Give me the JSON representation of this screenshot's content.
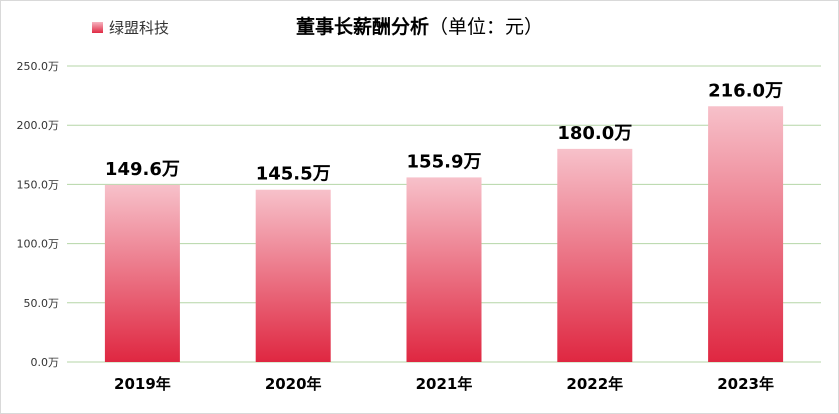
{
  "chart_data": {
    "type": "bar",
    "title": "董事长薪酬分析",
    "title_unit": "（单位：元）",
    "categories": [
      "2019年",
      "2020年",
      "2021年",
      "2022年",
      "2023年"
    ],
    "series": [
      {
        "name": "绿盟科技",
        "values": [
          149.6,
          145.5,
          155.9,
          180.0,
          216.0
        ],
        "data_labels": [
          "149.6万",
          "145.5万",
          "155.9万",
          "180.0万",
          "216.0万"
        ]
      }
    ],
    "y_ticks": [
      0,
      50,
      100,
      150,
      200,
      250
    ],
    "y_tick_labels": [
      "0.0万",
      "50.0万",
      "100.0万",
      "150.0万",
      "200.0万",
      "250.0万"
    ],
    "ylim": [
      0,
      250
    ],
    "grid": true,
    "legend_position": "top-left",
    "colors": {
      "bar_top": "#f7c1ca",
      "bar_bottom": "#df2741",
      "grid": "#b5d6a7"
    }
  }
}
